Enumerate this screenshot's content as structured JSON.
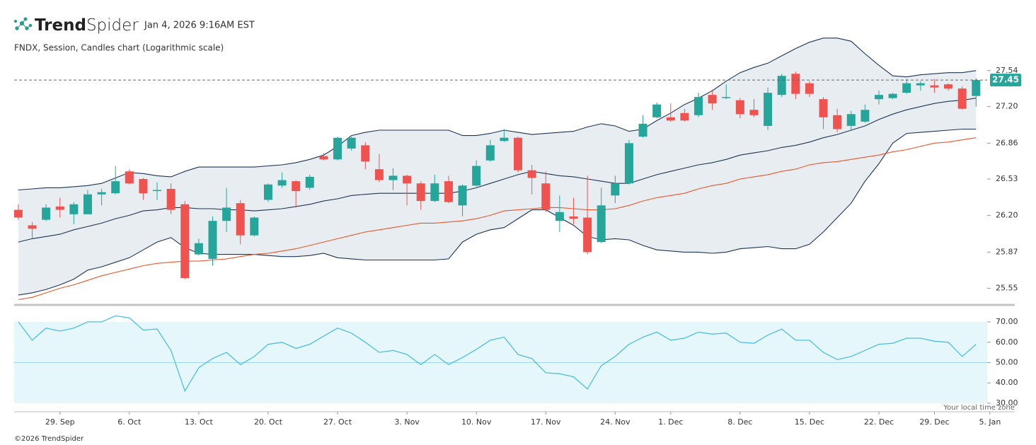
{
  "header": {
    "logo": {
      "bold": "Trend",
      "light": "Spider"
    },
    "timestamp": "Jan 4, 2026 9:16AM EST",
    "subtitle": "FNDX, Session, Candles chart (Logarithmic scale)"
  },
  "footer": {
    "copyright": "©2026 TrendSpider",
    "timezone_note": "Your local time zone"
  },
  "chart_data": [
    {
      "type": "candlestick",
      "log_scale": true,
      "up_color": "#26a69a",
      "down_color": "#ef5350",
      "last_price_line": true,
      "ylim": [
        25.41,
        27.91
      ],
      "yticks": [
        27.54,
        {
          "value": 27.2,
          "label": "27.20"
        },
        26.86,
        26.53,
        {
          "value": 26.2,
          "label": "26.20"
        },
        25.87,
        25.55
      ],
      "fill_between": [
        0,
        2
      ],
      "fill_color": "#e8edf2",
      "candles": [
        {
          "open": 26.25,
          "high": 26.3,
          "low": 26.16,
          "close": 26.18
        },
        {
          "open": 26.11,
          "high": 26.14,
          "low": 25.99,
          "close": 26.08
        },
        {
          "open": 26.16,
          "high": 26.3,
          "low": 26.15,
          "close": 26.27
        },
        {
          "open": 26.28,
          "high": 26.36,
          "low": 26.18,
          "close": 26.25
        },
        {
          "open": 26.21,
          "high": 26.32,
          "low": 26.12,
          "close": 26.3
        },
        {
          "open": 26.21,
          "high": 26.43,
          "low": 26.21,
          "close": 26.39
        },
        {
          "open": 26.39,
          "high": 26.44,
          "low": 26.29,
          "close": 26.41
        },
        {
          "open": 26.4,
          "high": 26.65,
          "low": 26.39,
          "close": 26.51
        },
        {
          "open": 26.6,
          "high": 26.62,
          "low": 26.48,
          "close": 26.49
        },
        {
          "open": 26.53,
          "high": 26.54,
          "low": 26.34,
          "close": 26.4
        },
        {
          "open": 26.42,
          "high": 26.5,
          "low": 26.34,
          "close": 26.43
        },
        {
          "open": 26.44,
          "high": 26.49,
          "low": 26.21,
          "close": 26.25
        },
        {
          "open": 26.3,
          "high": 26.33,
          "low": 25.63,
          "close": 25.64
        },
        {
          "open": 25.85,
          "high": 25.99,
          "low": 25.84,
          "close": 25.95
        },
        {
          "open": 25.81,
          "high": 26.19,
          "low": 25.75,
          "close": 26.15
        },
        {
          "open": 26.15,
          "high": 26.45,
          "low": 26.05,
          "close": 26.27
        },
        {
          "open": 26.31,
          "high": 26.34,
          "low": 25.94,
          "close": 26.02
        },
        {
          "open": 26.02,
          "high": 26.19,
          "low": 26.01,
          "close": 26.18
        },
        {
          "open": 26.34,
          "high": 26.49,
          "low": 26.32,
          "close": 26.48
        },
        {
          "open": 26.47,
          "high": 26.59,
          "low": 26.45,
          "close": 26.52
        },
        {
          "open": 26.51,
          "high": 26.52,
          "low": 26.27,
          "close": 26.42
        },
        {
          "open": 26.45,
          "high": 26.57,
          "low": 26.43,
          "close": 26.55
        },
        {
          "open": 26.74,
          "high": 26.77,
          "low": 26.7,
          "close": 26.71
        },
        {
          "open": 26.71,
          "high": 26.92,
          "low": 26.7,
          "close": 26.91
        },
        {
          "open": 26.81,
          "high": 26.92,
          "low": 26.79,
          "close": 26.91
        },
        {
          "open": 26.84,
          "high": 26.87,
          "low": 26.62,
          "close": 26.69
        },
        {
          "open": 26.62,
          "high": 26.76,
          "low": 26.5,
          "close": 26.52
        },
        {
          "open": 26.52,
          "high": 26.63,
          "low": 26.43,
          "close": 26.56
        },
        {
          "open": 26.56,
          "high": 26.57,
          "low": 26.29,
          "close": 26.49
        },
        {
          "open": 26.49,
          "high": 26.51,
          "low": 26.25,
          "close": 26.33
        },
        {
          "open": 26.33,
          "high": 26.57,
          "low": 26.32,
          "close": 26.49
        },
        {
          "open": 26.51,
          "high": 26.56,
          "low": 26.31,
          "close": 26.32
        },
        {
          "open": 26.29,
          "high": 26.48,
          "low": 26.19,
          "close": 26.47
        },
        {
          "open": 26.47,
          "high": 26.7,
          "low": 26.46,
          "close": 26.65
        },
        {
          "open": 26.7,
          "high": 26.89,
          "low": 26.69,
          "close": 26.84
        },
        {
          "open": 26.88,
          "high": 26.99,
          "low": 26.87,
          "close": 26.91
        },
        {
          "open": 26.91,
          "high": 26.92,
          "low": 26.59,
          "close": 26.61
        },
        {
          "open": 26.61,
          "high": 26.66,
          "low": 26.39,
          "close": 26.54
        },
        {
          "open": 26.49,
          "high": 26.6,
          "low": 26.23,
          "close": 26.25
        },
        {
          "open": 26.15,
          "high": 26.38,
          "low": 26.05,
          "close": 26.23
        },
        {
          "open": 26.19,
          "high": 26.36,
          "low": 26.12,
          "close": 26.17
        },
        {
          "open": 26.18,
          "high": 26.56,
          "low": 25.85,
          "close": 25.87
        },
        {
          "open": 25.96,
          "high": 26.45,
          "low": 25.95,
          "close": 26.29
        },
        {
          "open": 26.38,
          "high": 26.56,
          "low": 26.31,
          "close": 26.49
        },
        {
          "open": 26.49,
          "high": 26.89,
          "low": 26.48,
          "close": 26.86
        },
        {
          "open": 26.92,
          "high": 27.12,
          "low": 26.91,
          "close": 27.04
        },
        {
          "open": 27.1,
          "high": 27.24,
          "low": 27.09,
          "close": 27.22
        },
        {
          "open": 27.1,
          "high": 27.23,
          "low": 27.06,
          "close": 27.07
        },
        {
          "open": 27.14,
          "high": 27.18,
          "low": 27.06,
          "close": 27.07
        },
        {
          "open": 27.12,
          "high": 27.33,
          "low": 27.1,
          "close": 27.29
        },
        {
          "open": 27.31,
          "high": 27.36,
          "low": 27.17,
          "close": 27.23
        },
        {
          "open": 27.28,
          "high": 27.41,
          "low": 27.27,
          "close": 27.29
        },
        {
          "open": 27.26,
          "high": 27.28,
          "low": 27.09,
          "close": 27.13
        },
        {
          "open": 27.17,
          "high": 27.27,
          "low": 27.1,
          "close": 27.12
        },
        {
          "open": 27.02,
          "high": 27.38,
          "low": 26.98,
          "close": 27.33
        },
        {
          "open": 27.31,
          "high": 27.51,
          "low": 27.29,
          "close": 27.49
        },
        {
          "open": 27.51,
          "high": 27.53,
          "low": 27.27,
          "close": 27.32
        },
        {
          "open": 27.42,
          "high": 27.44,
          "low": 27.29,
          "close": 27.32
        },
        {
          "open": 27.27,
          "high": 27.29,
          "low": 26.99,
          "close": 27.1
        },
        {
          "open": 27.12,
          "high": 27.18,
          "low": 26.96,
          "close": 26.99
        },
        {
          "open": 27.02,
          "high": 27.16,
          "low": 26.98,
          "close": 27.13
        },
        {
          "open": 27.06,
          "high": 27.22,
          "low": 27.05,
          "close": 27.17
        },
        {
          "open": 27.27,
          "high": 27.35,
          "low": 27.22,
          "close": 27.31
        },
        {
          "open": 27.28,
          "high": 27.33,
          "low": 27.27,
          "close": 27.32
        },
        {
          "open": 27.33,
          "high": 27.46,
          "low": 27.32,
          "close": 27.42
        },
        {
          "open": 27.4,
          "high": 27.44,
          "low": 27.35,
          "close": 27.42
        },
        {
          "open": 27.4,
          "high": 27.46,
          "low": 27.33,
          "close": 27.38
        },
        {
          "open": 27.41,
          "high": 27.42,
          "low": 27.35,
          "close": 27.37
        },
        {
          "open": 27.37,
          "high": 27.39,
          "low": 27.17,
          "close": 27.18
        },
        {
          "open": 27.3,
          "high": 27.47,
          "low": 27.2,
          "close": 27.45
        }
      ],
      "series": [
        {
          "color": "#1e3553",
          "values": [
            26.43,
            26.44,
            26.45,
            26.45,
            26.46,
            26.47,
            26.49,
            26.54,
            26.59,
            26.58,
            26.56,
            26.55,
            26.6,
            26.64,
            26.64,
            26.64,
            26.64,
            26.64,
            26.65,
            26.66,
            26.68,
            26.71,
            26.75,
            26.83,
            26.93,
            26.96,
            26.98,
            26.98,
            26.98,
            26.98,
            26.98,
            26.98,
            26.93,
            26.93,
            26.95,
            26.98,
            26.96,
            26.94,
            26.95,
            26.96,
            26.97,
            27.01,
            27.04,
            27.02,
            26.97,
            26.99,
            27.07,
            27.14,
            27.22,
            27.28,
            27.35,
            27.44,
            27.52,
            27.57,
            27.61,
            27.68,
            27.75,
            27.81,
            27.85,
            27.85,
            27.82,
            27.7,
            27.59,
            27.49,
            27.48,
            27.5,
            27.51,
            27.52,
            27.52,
            27.54
          ]
        },
        {
          "color": "#1e3553",
          "values": [
            25.96,
            25.99,
            26.01,
            26.03,
            26.07,
            26.1,
            26.13,
            26.17,
            26.2,
            26.24,
            26.25,
            26.27,
            26.27,
            26.26,
            26.26,
            26.25,
            26.25,
            26.24,
            26.25,
            26.26,
            26.28,
            26.3,
            26.33,
            26.35,
            26.38,
            26.39,
            26.4,
            26.4,
            26.4,
            26.4,
            26.4,
            26.4,
            26.42,
            26.45,
            26.49,
            26.53,
            26.57,
            26.6,
            26.58,
            26.56,
            26.55,
            26.53,
            26.51,
            26.49,
            26.49,
            26.53,
            26.57,
            26.6,
            26.63,
            26.66,
            26.68,
            26.71,
            26.75,
            26.77,
            26.79,
            26.82,
            26.84,
            26.87,
            26.91,
            26.94,
            26.98,
            27.02,
            27.08,
            27.13,
            27.17,
            27.2,
            27.23,
            27.25,
            27.26,
            27.28
          ]
        },
        {
          "color": "#1e3553",
          "values": [
            25.49,
            25.51,
            25.54,
            25.58,
            25.63,
            25.71,
            25.74,
            25.78,
            25.82,
            25.89,
            25.96,
            26.0,
            25.91,
            25.86,
            25.85,
            25.85,
            25.85,
            25.85,
            25.84,
            25.83,
            25.83,
            25.84,
            25.86,
            25.82,
            25.81,
            25.8,
            25.8,
            25.8,
            25.8,
            25.8,
            25.8,
            25.81,
            25.96,
            26.03,
            26.07,
            26.09,
            26.17,
            26.25,
            26.25,
            26.18,
            26.11,
            26.01,
            25.98,
            25.99,
            25.98,
            25.93,
            25.89,
            25.88,
            25.87,
            25.87,
            25.86,
            25.87,
            25.9,
            25.91,
            25.92,
            25.9,
            25.9,
            25.94,
            26.05,
            26.18,
            26.31,
            26.51,
            26.67,
            26.86,
            26.95,
            26.96,
            26.97,
            26.98,
            26.99,
            26.99
          ]
        },
        {
          "color": "#e8572a",
          "values": [
            25.45,
            25.47,
            25.51,
            25.55,
            25.58,
            25.62,
            25.66,
            25.69,
            25.72,
            25.75,
            25.77,
            25.78,
            25.79,
            25.79,
            25.8,
            25.81,
            25.83,
            25.85,
            25.86,
            25.88,
            25.9,
            25.93,
            25.96,
            25.99,
            26.02,
            26.05,
            26.07,
            26.09,
            26.11,
            26.13,
            26.13,
            26.14,
            26.15,
            26.17,
            26.2,
            26.24,
            26.25,
            26.26,
            26.27,
            26.27,
            26.26,
            26.25,
            26.25,
            26.26,
            26.29,
            26.33,
            26.36,
            26.38,
            26.4,
            26.44,
            26.47,
            26.49,
            26.53,
            26.55,
            26.57,
            26.6,
            26.62,
            26.66,
            26.68,
            26.69,
            26.71,
            26.73,
            26.75,
            26.78,
            26.8,
            26.83,
            26.86,
            26.87,
            26.89,
            26.91
          ]
        }
      ]
    },
    {
      "type": "line",
      "color": "#4fbfe0",
      "band": [
        30,
        70
      ],
      "band_color": "#e5f7fb",
      "midline": 50,
      "ylim": [
        25.8,
        72.8
      ],
      "yticks": [
        {
          "value": 70,
          "label": "70.00"
        },
        {
          "value": 60,
          "label": "60.00"
        },
        {
          "value": 50,
          "label": "50.00"
        },
        {
          "value": 40,
          "label": "40.00"
        },
        {
          "value": 30,
          "label": "30.00"
        }
      ],
      "xlim": [
        -0.3,
        69.8
      ],
      "xticks": [
        {
          "value": 3,
          "label": "29. Sep"
        },
        {
          "value": 8,
          "label": "6. Oct"
        },
        {
          "value": 13,
          "label": "13. Oct"
        },
        {
          "value": 18,
          "label": "20. Oct"
        },
        {
          "value": 23,
          "label": "27. Oct"
        },
        {
          "value": 28,
          "label": "3. Nov"
        },
        {
          "value": 33,
          "label": "10. Nov"
        },
        {
          "value": 38,
          "label": "17. Nov"
        },
        {
          "value": 43,
          "label": "24. Nov"
        },
        {
          "value": 47,
          "label": "1. Dec"
        },
        {
          "value": 52,
          "label": "8. Dec"
        },
        {
          "value": 57,
          "label": "15. Dec"
        },
        {
          "value": 62,
          "label": "22. Dec"
        },
        {
          "value": 66,
          "label": "29. Dec"
        },
        {
          "value": 70,
          "label": "5. Jan"
        }
      ],
      "values": [
        70,
        61,
        67,
        65.5,
        67,
        70,
        70,
        73,
        72,
        66,
        66.5,
        56,
        36,
        47.5,
        52,
        55,
        49,
        53,
        59,
        60,
        57,
        59,
        63,
        67,
        64.5,
        60,
        55,
        56,
        54,
        49,
        54,
        49,
        52.5,
        56.5,
        61,
        62.5,
        54,
        52,
        45,
        44.5,
        43,
        37,
        48.5,
        53,
        59,
        62.5,
        65,
        61,
        62,
        65,
        64,
        64.5,
        60,
        59.5,
        63.5,
        66.5,
        61,
        61,
        55,
        51.5,
        53,
        56,
        59,
        59.5,
        62,
        62,
        60.5,
        60,
        53,
        59
      ]
    }
  ]
}
